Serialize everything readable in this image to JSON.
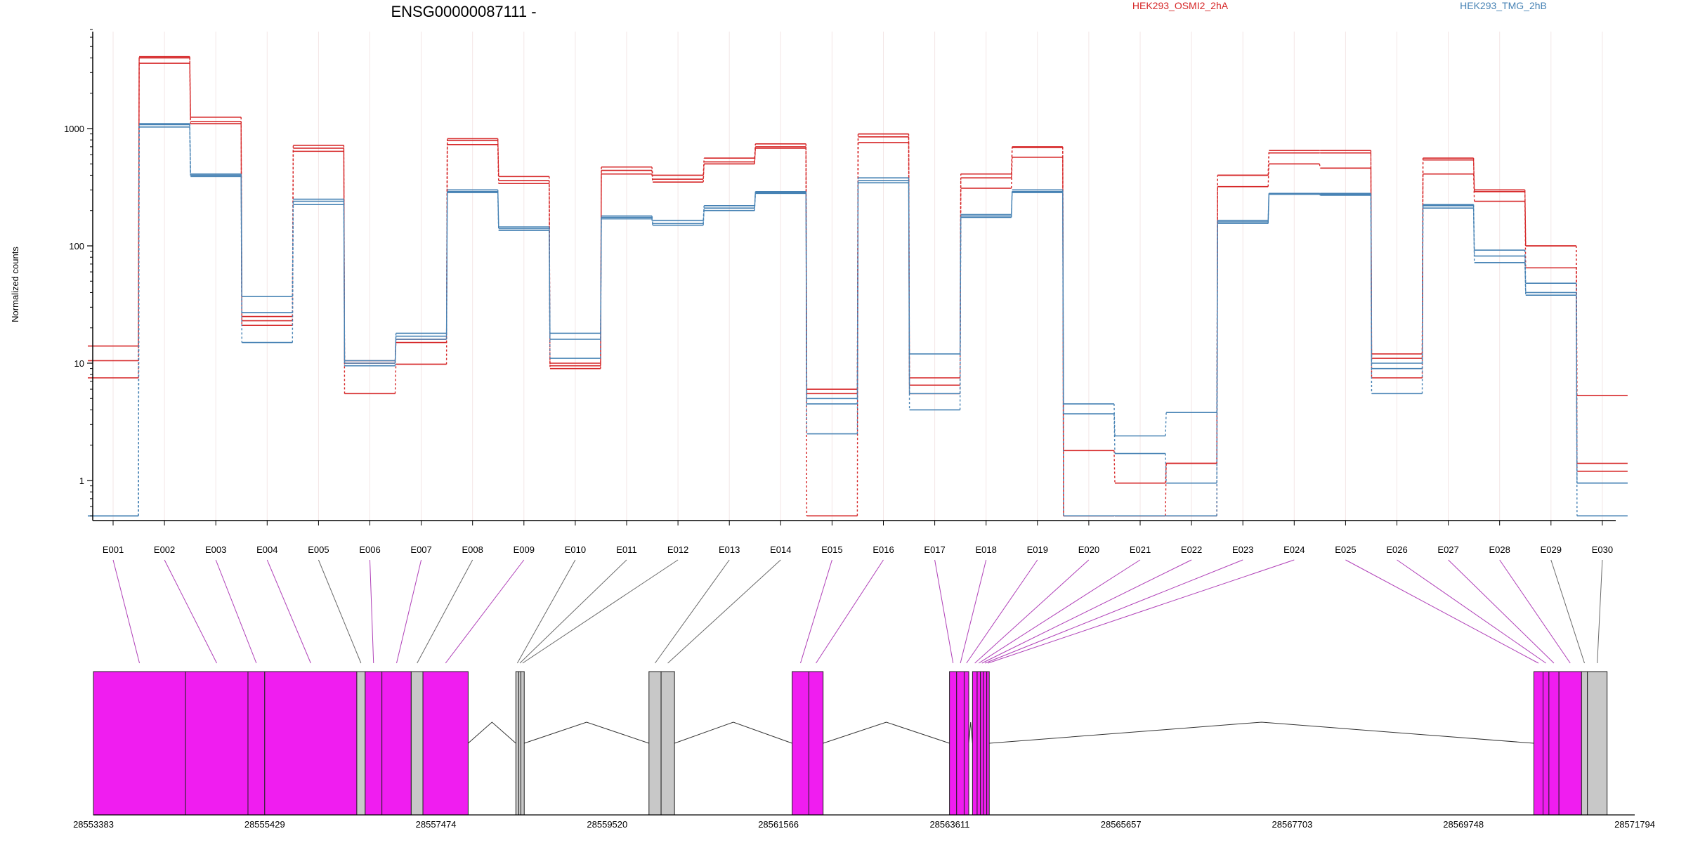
{
  "chart_data": {
    "type": "line",
    "title": "ENSG00000087111 -",
    "ylabel": "Normalized counts",
    "yscale": "log",
    "ylim": [
      0.5,
      7000
    ],
    "yticks": [
      {
        "value": 1,
        "label": "1"
      },
      {
        "value": 10,
        "label": "10"
      },
      {
        "value": 100,
        "label": "100"
      },
      {
        "value": 1000,
        "label": "1000"
      }
    ],
    "grid": "vertical",
    "legend_position": "top-right",
    "categories": [
      "E001",
      "E002",
      "E003",
      "E004",
      "E005",
      "E006",
      "E007",
      "E008",
      "E009",
      "E010",
      "E011",
      "E012",
      "E013",
      "E014",
      "E015",
      "E016",
      "E017",
      "E018",
      "E019",
      "E020",
      "E021",
      "E022",
      "E023",
      "E024",
      "E025",
      "E026",
      "E027",
      "E028",
      "E029",
      "E030"
    ],
    "series": [
      {
        "name": "HEK293_OSMI2_2hA",
        "group": "A",
        "color": "#d62728",
        "values": [
          14,
          4100,
          1250,
          25,
          720,
          10.5,
          16,
          820,
          390,
          10,
          470,
          400,
          560,
          740,
          6,
          900,
          7.5,
          410,
          700,
          1.8,
          0.95,
          1.4,
          400,
          650,
          650,
          12,
          560,
          300,
          100,
          5.3
        ]
      },
      {
        "group": "A",
        "color": "#d62728",
        "values": [
          10.5,
          4000,
          1150,
          23,
          680,
          10,
          15,
          790,
          360,
          9.5,
          440,
          370,
          520,
          700,
          5.5,
          850,
          6.5,
          380,
          690,
          0.5,
          0.5,
          1.4,
          400,
          620,
          620,
          11,
          540,
          290,
          100,
          1.4
        ]
      },
      {
        "group": "A",
        "color": "#d62728",
        "values": [
          7.5,
          3600,
          1100,
          21,
          640,
          5.5,
          9.8,
          730,
          340,
          9,
          410,
          350,
          500,
          680,
          0.5,
          760,
          5.5,
          310,
          570,
          0.5,
          0.5,
          0.5,
          320,
          500,
          460,
          7.5,
          410,
          240,
          65,
          1.2
        ]
      },
      {
        "group": "B",
        "color": "#4682b4",
        "values": [
          0.5,
          1100,
          410,
          37,
          250,
          10.5,
          18,
          300,
          145,
          18,
          180,
          165,
          220,
          290,
          5,
          380,
          12,
          185,
          300,
          4.5,
          2.4,
          3.8,
          165,
          280,
          280,
          10,
          225,
          92,
          48,
          0.95
        ]
      },
      {
        "group": "B",
        "color": "#4682b4",
        "values": [
          0.5,
          1080,
          400,
          27,
          240,
          10,
          17,
          290,
          140,
          16,
          175,
          155,
          210,
          285,
          4.5,
          360,
          5.5,
          180,
          290,
          3.7,
          1.7,
          0.95,
          160,
          280,
          275,
          9,
          220,
          82,
          40,
          0.95
        ]
      },
      {
        "group": "B",
        "color": "#4682b4",
        "values": [
          0.5,
          1030,
          390,
          15,
          225,
          9.5,
          16,
          285,
          135,
          11,
          170,
          150,
          200,
          280,
          2.5,
          345,
          4,
          175,
          285,
          0.5,
          0.5,
          0.5,
          155,
          275,
          270,
          5.5,
          210,
          72,
          38,
          0.5
        ]
      }
    ],
    "gene_model": {
      "start_coordinate": 28553383,
      "end_coordinate": 28571794,
      "axis_labels": [
        "28553383",
        "28555429",
        "28557474",
        "28559520",
        "28561566",
        "28563611",
        "28565657",
        "28567703",
        "28569748",
        "28571794"
      ],
      "exonic_parts": [
        {
          "id": "E001",
          "start": 28553383,
          "end": 28554483,
          "tested": true
        },
        {
          "id": "E002",
          "start": 28554483,
          "end": 28555229,
          "tested": true
        },
        {
          "id": "E003",
          "start": 28555229,
          "end": 28555429,
          "tested": true
        },
        {
          "id": "E004",
          "start": 28555429,
          "end": 28556529,
          "tested": true
        },
        {
          "id": "E005",
          "start": 28556529,
          "end": 28556629,
          "tested": false
        },
        {
          "id": "E006",
          "start": 28556629,
          "end": 28556829,
          "tested": true
        },
        {
          "id": "E007",
          "start": 28556829,
          "end": 28557179,
          "tested": true
        },
        {
          "id": "E008",
          "start": 28557179,
          "end": 28557319,
          "tested": false
        },
        {
          "id": "E009",
          "start": 28557319,
          "end": 28557859,
          "tested": true
        },
        {
          "id": "E010",
          "start": 28558429,
          "end": 28558464,
          "tested": false
        },
        {
          "id": "E011",
          "start": 28558464,
          "end": 28558489,
          "tested": false
        },
        {
          "id": "E012",
          "start": 28558489,
          "end": 28558529,
          "tested": false
        },
        {
          "id": "E013",
          "start": 28560019,
          "end": 28560164,
          "tested": false
        },
        {
          "id": "E014",
          "start": 28560164,
          "end": 28560324,
          "tested": false
        },
        {
          "id": "E015",
          "start": 28561729,
          "end": 28561929,
          "tested": true
        },
        {
          "id": "E016",
          "start": 28561929,
          "end": 28562099,
          "tested": true
        },
        {
          "id": "E017",
          "start": 28563609,
          "end": 28563694,
          "tested": true
        },
        {
          "id": "E018",
          "start": 28563694,
          "end": 28563784,
          "tested": true
        },
        {
          "id": "E019",
          "start": 28563784,
          "end": 28563839,
          "tested": true
        },
        {
          "id": "E020",
          "start": 28563884,
          "end": 28563939,
          "tested": true
        },
        {
          "id": "E021",
          "start": 28563939,
          "end": 28563979,
          "tested": true
        },
        {
          "id": "E022",
          "start": 28563979,
          "end": 28564014,
          "tested": true
        },
        {
          "id": "E023",
          "start": 28564014,
          "end": 28564054,
          "tested": true
        },
        {
          "id": "E024",
          "start": 28564054,
          "end": 28564084,
          "tested": true
        },
        {
          "id": "E025",
          "start": 28570589,
          "end": 28570699,
          "tested": true
        },
        {
          "id": "E026",
          "start": 28570699,
          "end": 28570769,
          "tested": true
        },
        {
          "id": "E027",
          "start": 28570769,
          "end": 28570889,
          "tested": true
        },
        {
          "id": "E028",
          "start": 28570889,
          "end": 28571159,
          "tested": true
        },
        {
          "id": "E029",
          "start": 28571159,
          "end": 28571229,
          "tested": false
        },
        {
          "id": "E030",
          "start": 28571229,
          "end": 28571464,
          "tested": false
        }
      ],
      "tested_color": "#f01df0",
      "untested_color": "#c8c8c8"
    }
  }
}
